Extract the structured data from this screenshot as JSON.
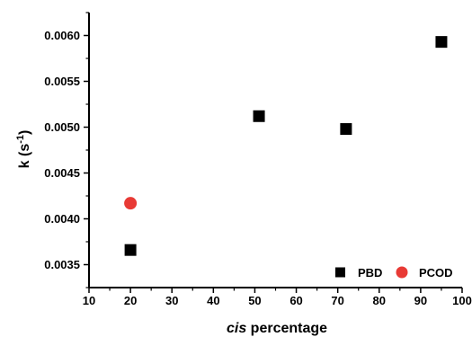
{
  "chart_data": {
    "type": "scatter",
    "title": "",
    "xlabel_italic": "cis",
    "xlabel_rest": " percentage",
    "ylabel_main": "k (s",
    "ylabel_sup": "-1",
    "ylabel_close": ")",
    "xlim": [
      10,
      100
    ],
    "ylim": [
      0.00325,
      0.00625
    ],
    "x_ticks": [
      10,
      20,
      30,
      40,
      50,
      60,
      70,
      80,
      90,
      100
    ],
    "x_tick_labels": [
      "10",
      "20",
      "30",
      "40",
      "50",
      "60",
      "70",
      "80",
      "90",
      "100"
    ],
    "y_ticks": [
      0.0035,
      0.004,
      0.0045,
      0.005,
      0.0055,
      0.006
    ],
    "y_tick_labels": [
      "0.0035",
      "0.0040",
      "0.0045",
      "0.0050",
      "0.0055",
      "0.0060"
    ],
    "grid": false,
    "legend_position": "bottom-right",
    "series": [
      {
        "name": "PBD",
        "marker": "square",
        "color": "#000000",
        "points": [
          {
            "x": 20,
            "y": 0.00366
          },
          {
            "x": 51,
            "y": 0.00512
          },
          {
            "x": 72,
            "y": 0.00498
          },
          {
            "x": 95,
            "y": 0.00593
          }
        ]
      },
      {
        "name": "PCOD",
        "marker": "circle",
        "color": "#e83a35",
        "points": [
          {
            "x": 20,
            "y": 0.00417
          }
        ]
      }
    ]
  }
}
